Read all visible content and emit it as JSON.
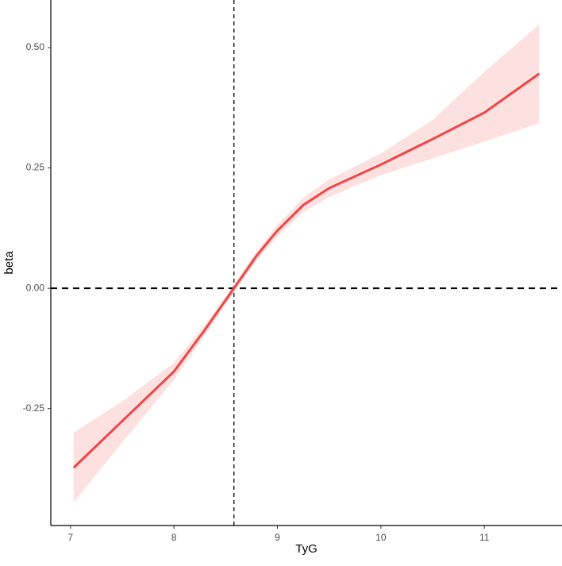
{
  "chart_data": {
    "type": "line",
    "x_label": "TyG",
    "y_label": "beta",
    "x": [
      7.03,
      7.5,
      8,
      8.3,
      8.58,
      8.8,
      9,
      9.25,
      9.5,
      10,
      10.5,
      11,
      11.53
    ],
    "values": [
      -0.373,
      -0.276,
      -0.173,
      -0.086,
      0,
      0.068,
      0.12,
      0.173,
      0.208,
      0.257,
      0.31,
      0.365,
      0.446
    ],
    "lower": [
      -0.445,
      -0.32,
      -0.19,
      -0.097,
      -0.008,
      0.058,
      0.108,
      0.158,
      0.19,
      0.235,
      0.27,
      0.305,
      0.343
    ],
    "upper": [
      -0.3,
      -0.235,
      -0.155,
      -0.075,
      0.008,
      0.078,
      0.132,
      0.188,
      0.226,
      0.28,
      0.35,
      0.45,
      0.548
    ],
    "color": "#f04545",
    "band_color": "#fde0e0",
    "vline": 8.58,
    "hline": 0,
    "xlim": [
      6.81,
      11.75
    ],
    "ylim": [
      -0.493,
      0.599
    ],
    "xticks": [
      7,
      8,
      9,
      10,
      11
    ],
    "yticks": [
      {
        "value": -0.25,
        "label": "-0.25"
      },
      {
        "value": 0,
        "label": "0.00"
      },
      {
        "value": 0.25,
        "label": "0.25"
      },
      {
        "value": 0.5,
        "label": "0.50"
      }
    ]
  }
}
